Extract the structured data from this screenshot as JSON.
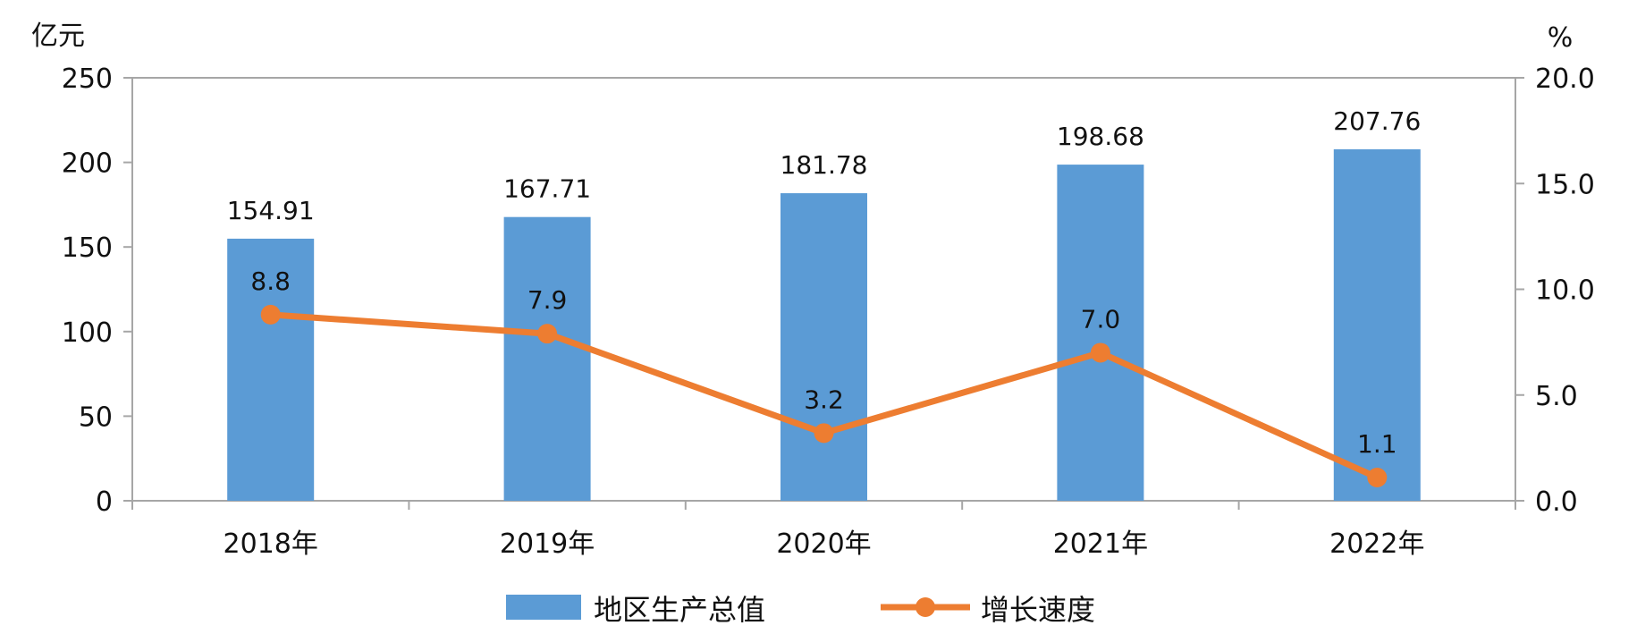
{
  "chart_data": {
    "type": "bar",
    "categories": [
      "2018年",
      "2019年",
      "2020年",
      "2021年",
      "2022年"
    ],
    "y_left_unit": "亿元",
    "y_right_unit": "%",
    "ylim_left": [
      0,
      250
    ],
    "yticks_left": [
      "0",
      "50",
      "100",
      "150",
      "200",
      "250"
    ],
    "ylim_right": [
      0,
      20
    ],
    "yticks_right": [
      "0.0",
      "5.0",
      "10.0",
      "15.0",
      "20.0"
    ],
    "series": [
      {
        "name": "地区生产总值",
        "type": "bar",
        "axis": "left",
        "color": "#5b9bd5",
        "values": [
          154.91,
          167.71,
          181.78,
          198.68,
          207.76
        ],
        "labels": [
          "154.91",
          "167.71",
          "181.78",
          "198.68",
          "207.76"
        ]
      },
      {
        "name": "增长速度",
        "type": "line",
        "axis": "right",
        "color": "#ed7d31",
        "values": [
          8.8,
          7.9,
          3.2,
          7.0,
          1.1
        ],
        "labels": [
          "8.8",
          "7.9",
          "3.2",
          "7.0",
          "1.1"
        ]
      }
    ],
    "legend_position": "bottom",
    "grid": false
  }
}
